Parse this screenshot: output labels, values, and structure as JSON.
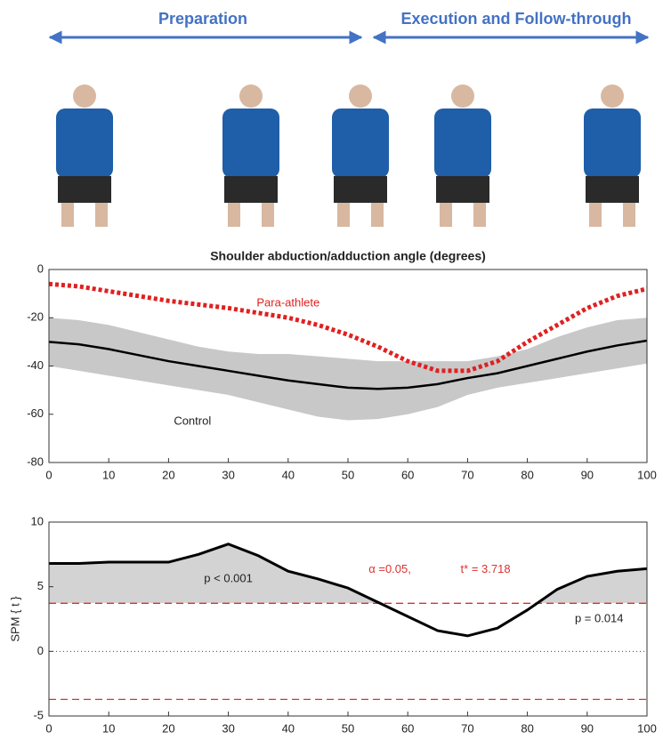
{
  "phases": [
    "Preparation",
    "Execution and Follow-through"
  ],
  "chart_data": [
    {
      "type": "line",
      "title": "Shoulder abduction/adduction angle (degrees)",
      "x": [
        0,
        5,
        10,
        15,
        20,
        25,
        30,
        35,
        40,
        45,
        50,
        55,
        60,
        65,
        70,
        75,
        80,
        85,
        90,
        95,
        100
      ],
      "xlim": [
        0,
        100
      ],
      "xticks": [
        0,
        10,
        20,
        30,
        40,
        50,
        60,
        70,
        80,
        90,
        100
      ],
      "ylim": [
        -80,
        0
      ],
      "yticks": [
        -80,
        -60,
        -40,
        -20,
        0
      ],
      "band": {
        "color": "#c8c8c8",
        "upper": [
          -20,
          -21,
          -23,
          -26,
          -29,
          -32,
          -34,
          -35,
          -35,
          -36,
          -37,
          -38,
          -38,
          -38,
          -38,
          -36,
          -33,
          -28,
          -24,
          -21,
          -20
        ],
        "lower": [
          -40,
          -42,
          -44,
          -46,
          -48,
          -50,
          -52,
          -55,
          -58,
          -61,
          -62.5,
          -62,
          -60,
          -57,
          -52,
          -49,
          -47,
          -45,
          -43,
          -41,
          -39
        ]
      },
      "series": [
        {
          "name": "Para-athlete",
          "color": "#e02020",
          "dash": true,
          "values": [
            -6,
            -7,
            -9,
            -11,
            -13,
            -14.5,
            -16,
            -18,
            -20,
            -23,
            -27,
            -32,
            -38,
            -42,
            -42,
            -38,
            -30,
            -23,
            -16,
            -11,
            -8
          ]
        },
        {
          "name": "Control",
          "color": "#000000",
          "dash": false,
          "values": [
            -30,
            -31,
            -33,
            -35.5,
            -38,
            -40,
            -42,
            -44,
            -46,
            -47.5,
            -49,
            -49.5,
            -49,
            -47.5,
            -45,
            -43,
            -40,
            -37,
            -34,
            -31.5,
            -29.5
          ]
        }
      ]
    },
    {
      "type": "spm",
      "y_label": "SPM { t }",
      "x": [
        0,
        5,
        10,
        15,
        20,
        25,
        30,
        35,
        40,
        45,
        50,
        55,
        60,
        65,
        70,
        75,
        80,
        85,
        90,
        95,
        100
      ],
      "xlim": [
        0,
        100
      ],
      "xticks": [
        0,
        10,
        20,
        30,
        40,
        50,
        60,
        70,
        80,
        90,
        100
      ],
      "ylim": [
        -5,
        10
      ],
      "yticks": [
        -5,
        0,
        5,
        10
      ],
      "thresholds": [
        3.718,
        -3.718
      ],
      "threshold_color": "#e03030",
      "shade": "#d3d3d3",
      "series": [
        {
          "color": "#000000",
          "values": [
            6.8,
            6.8,
            6.9,
            6.9,
            6.9,
            7.5,
            8.3,
            7.4,
            6.2,
            5.6,
            4.9,
            3.8,
            2.7,
            1.6,
            1.2,
            1.8,
            3.2,
            4.8,
            5.8,
            6.2,
            6.4
          ]
        }
      ],
      "annotations": [
        "p < 0.001",
        "p = 0.014",
        "α =0.05,",
        "t* = 3.718"
      ]
    }
  ]
}
